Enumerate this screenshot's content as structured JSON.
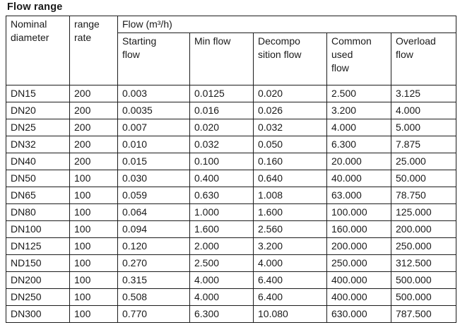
{
  "page": {
    "title": "Flow range"
  },
  "table": {
    "header": {
      "nominal_diameter": "Nominal\ndiameter",
      "range_rate": "range\nrate",
      "flow_group": "Flow (m³/h)",
      "starting_flow": "Starting\nflow",
      "min_flow": "Min flow",
      "decomposition_flow": "Decompo\nsition flow",
      "common_used_flow": "Common\nused\nflow",
      "overload_flow": "Overload\nflow"
    },
    "rows": [
      [
        "DN15",
        "200",
        "0.003",
        "0.0125",
        "0.020",
        "2.500",
        "3.125"
      ],
      [
        "DN20",
        "200",
        "0.0035",
        "0.016",
        "0.026",
        "3.200",
        "4.000"
      ],
      [
        "DN25",
        "200",
        "0.007",
        "0.020",
        "0.032",
        "4.000",
        "5.000"
      ],
      [
        "DN32",
        "200",
        "0.010",
        "0.032",
        "0.050",
        "6.300",
        "7.875"
      ],
      [
        "DN40",
        "200",
        "0.015",
        "0.100",
        "0.160",
        "20.000",
        "25.000"
      ],
      [
        "DN50",
        "100",
        "0.030",
        "0.400",
        "0.640",
        "40.000",
        "50.000"
      ],
      [
        "DN65",
        "100",
        "0.059",
        "0.630",
        "1.008",
        "63.000",
        "78.750"
      ],
      [
        "DN80",
        "100",
        "0.064",
        "1.000",
        "1.600",
        "100.000",
        "125.000"
      ],
      [
        "DN100",
        "100",
        "0.094",
        "1.600",
        "2.560",
        "160.000",
        "200.000"
      ],
      [
        "DN125",
        "100",
        "0.120",
        "2.000",
        "3.200",
        "200.000",
        "250.000"
      ],
      [
        "ND150",
        "100",
        "0.270",
        "2.500",
        "4.000",
        "250.000",
        "312.500"
      ],
      [
        "DN200",
        "100",
        "0.315",
        "4.000",
        "6.400",
        "400.000",
        "500.000"
      ],
      [
        "DN250",
        "100",
        "0.508",
        "4.000",
        "6.400",
        "400.000",
        "500.000"
      ],
      [
        "DN300",
        "100",
        "0.770",
        "6.300",
        "10.080",
        "630.000",
        "787.500"
      ]
    ]
  }
}
